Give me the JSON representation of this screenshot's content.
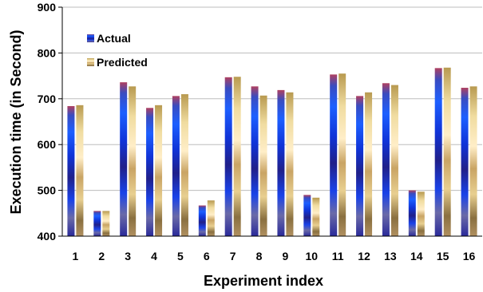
{
  "chart_data": {
    "type": "bar",
    "title": "",
    "xlabel": "Experiment index",
    "ylabel": "Execution time (in Second)",
    "ylim": [
      400,
      900
    ],
    "yticks": [
      400,
      500,
      600,
      700,
      800,
      900
    ],
    "categories": [
      "1",
      "2",
      "3",
      "4",
      "5",
      "6",
      "7",
      "8",
      "9",
      "10",
      "11",
      "12",
      "13",
      "14",
      "15",
      "16"
    ],
    "series": [
      {
        "name": "Actual",
        "color": "#1f3fd0",
        "values": [
          684,
          455,
          736,
          680,
          706,
          467,
          747,
          727,
          719,
          490,
          753,
          706,
          734,
          500,
          767,
          724
        ]
      },
      {
        "name": "Predicted",
        "color": "#d9b86a",
        "values": [
          686,
          455,
          727,
          686,
          710,
          478,
          748,
          707,
          714,
          484,
          755,
          714,
          730,
          497,
          768,
          727
        ]
      }
    ],
    "grid": "horizontal",
    "legend": "top-left"
  }
}
